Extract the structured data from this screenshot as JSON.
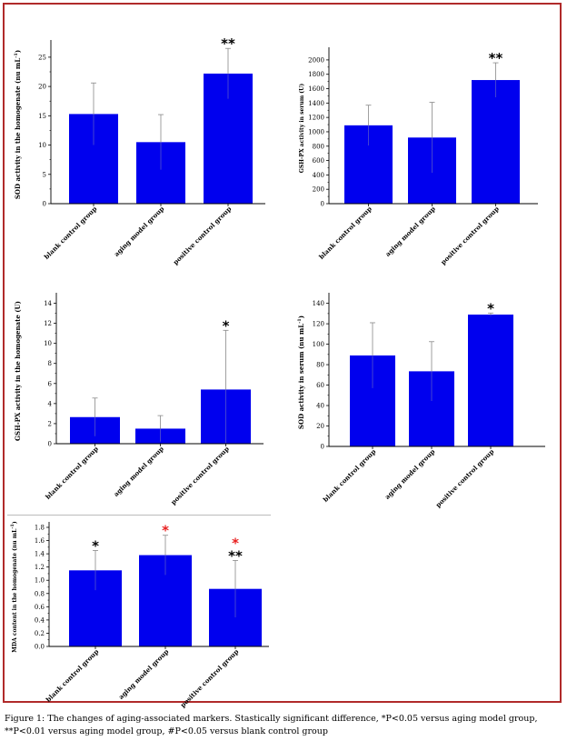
{
  "caption": "Figure 1: The changes of aging-associated markers. Stastically significant difference, *P<0.05 versus aging model group, **P<0.01 versus aging model group, #P<0.05 versus blank control group",
  "colors": {
    "bar": "#0000ee",
    "frame": "#b02a2a",
    "star_black": "#000000",
    "star_red": "#e82020"
  },
  "chart_data": [
    {
      "type": "bar",
      "categories": [
        "blank control group",
        "aging model group",
        "positive control group"
      ],
      "values": [
        15.3,
        10.5,
        22.2
      ],
      "errors": [
        5.3,
        4.7,
        4.3
      ],
      "ylabel": "SOD activity in the homogenate (nu mL",
      "ylabel_sup": "-1",
      "ylabel_end": ")",
      "ylim": [
        0,
        27
      ],
      "yticks": [
        0,
        5,
        10,
        15,
        20,
        25
      ],
      "annotations": [
        {
          "bar": 2,
          "marks": [
            {
              "text": "**",
              "color": "black"
            }
          ]
        }
      ]
    },
    {
      "type": "bar",
      "categories": [
        "blank control group",
        "aging model group",
        "positive control group"
      ],
      "values": [
        1090,
        920,
        1720
      ],
      "errors": [
        280,
        490,
        240
      ],
      "ylabel": "GSH-PX activity in serum (U)",
      "ylim": [
        0,
        2100
      ],
      "yticks": [
        0,
        200,
        400,
        600,
        800,
        1000,
        1200,
        1400,
        1600,
        1800,
        2000
      ],
      "annotations": [
        {
          "bar": 2,
          "marks": [
            {
              "text": "**",
              "color": "black"
            }
          ]
        }
      ]
    },
    {
      "type": "bar",
      "categories": [
        "blank control group",
        "aging model group",
        "positive control group"
      ],
      "values": [
        2.65,
        1.5,
        5.4
      ],
      "errors": [
        1.9,
        1.3,
        5.9
      ],
      "ylabel": "GSH-PX activity in the homogenate (U)",
      "ylim": [
        0,
        14.5
      ],
      "yticks": [
        0,
        2,
        4,
        6,
        8,
        10,
        12,
        14
      ],
      "annotations": [
        {
          "bar": 2,
          "marks": [
            {
              "text": "*",
              "color": "black"
            }
          ]
        }
      ]
    },
    {
      "type": "bar",
      "categories": [
        "blank control group",
        "aging model group",
        "positive control group"
      ],
      "values": [
        89,
        73.5,
        129
      ],
      "errors": [
        32,
        29,
        1.5
      ],
      "ylabel": "SOD activity in serum (nu mL",
      "ylabel_sup": "-1",
      "ylabel_end": ")",
      "ylim": [
        0,
        145
      ],
      "yticks": [
        0,
        20,
        40,
        60,
        80,
        100,
        120,
        140
      ],
      "annotations": [
        {
          "bar": 2,
          "marks": [
            {
              "text": "*",
              "color": "black"
            }
          ]
        }
      ]
    },
    {
      "type": "bar",
      "categories": [
        "blank control group",
        "aging model group",
        "positive control group"
      ],
      "values": [
        1.15,
        1.38,
        0.87
      ],
      "errors": [
        0.3,
        0.3,
        0.43
      ],
      "ylabel": "MDA content in the homogenate (nu mL",
      "ylabel_sup": "-1",
      "ylabel_end": ")",
      "ylim": [
        0,
        1.8
      ],
      "yticks": [
        0.0,
        0.2,
        0.4,
        0.6,
        0.8,
        1.0,
        1.2,
        1.4,
        1.6,
        1.8
      ],
      "tick_decimals": 1,
      "annotations": [
        {
          "bar": 0,
          "marks": [
            {
              "text": "*",
              "color": "black"
            }
          ]
        },
        {
          "bar": 1,
          "marks": [
            {
              "text": "*",
              "color": "red"
            }
          ]
        },
        {
          "bar": 2,
          "marks": [
            {
              "text": "**",
              "color": "black"
            },
            {
              "text": "*",
              "color": "red"
            }
          ]
        }
      ]
    }
  ]
}
